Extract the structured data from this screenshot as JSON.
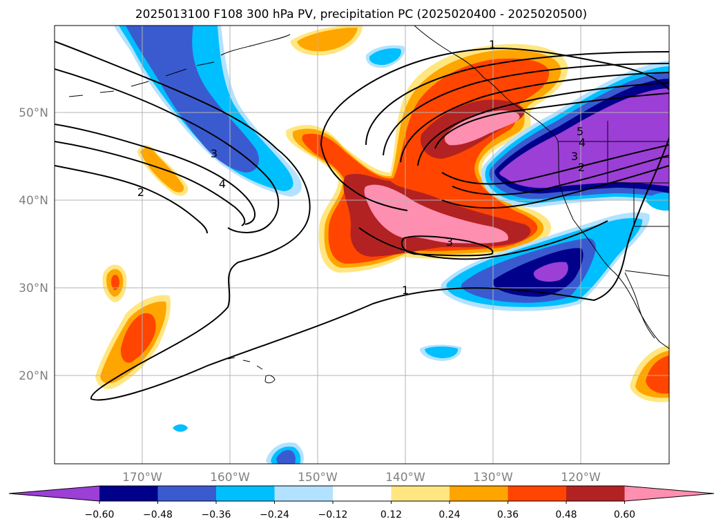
{
  "title": "2025013100 F108 300 hPa PV, precipitation PC (2025020400 - 2025020500)",
  "map": {
    "lon_range": [
      -180,
      -110
    ],
    "lat_range": [
      10,
      60
    ],
    "gridlines": true,
    "lat_labels": [
      "50°N",
      "40°N",
      "30°N",
      "20°N"
    ],
    "lon_labels": [
      "170°W",
      "160°W",
      "150°W",
      "140°W",
      "130°W",
      "120°W"
    ],
    "contour_labels": [
      "1",
      "1",
      "2",
      "3",
      "3",
      "4",
      "5",
      "4",
      "3",
      "2"
    ]
  },
  "colorbar": {
    "ticks": [
      "−0.60",
      "−0.48",
      "−0.36",
      "−0.24",
      "−0.12",
      "0.12",
      "0.24",
      "0.36",
      "0.48",
      "0.60"
    ],
    "colors": [
      "#9b3fd6",
      "#00008b",
      "#3a5bd0",
      "#00bfff",
      "#b2e2ff",
      "#ffffff",
      "#ffe680",
      "#ffa500",
      "#ff4500",
      "#b22222",
      "#ff8fb0"
    ],
    "extend": "both"
  },
  "colors": {
    "pink": "#ff8fb0",
    "darkred": "#b22222",
    "red": "#ff4500",
    "orange": "#ffa500",
    "yellow": "#ffe680",
    "lightblue": "#b2e2ff",
    "cyan": "#00bfff",
    "blue": "#3a5bd0",
    "navy": "#00008b",
    "purple": "#9b3fd6"
  }
}
